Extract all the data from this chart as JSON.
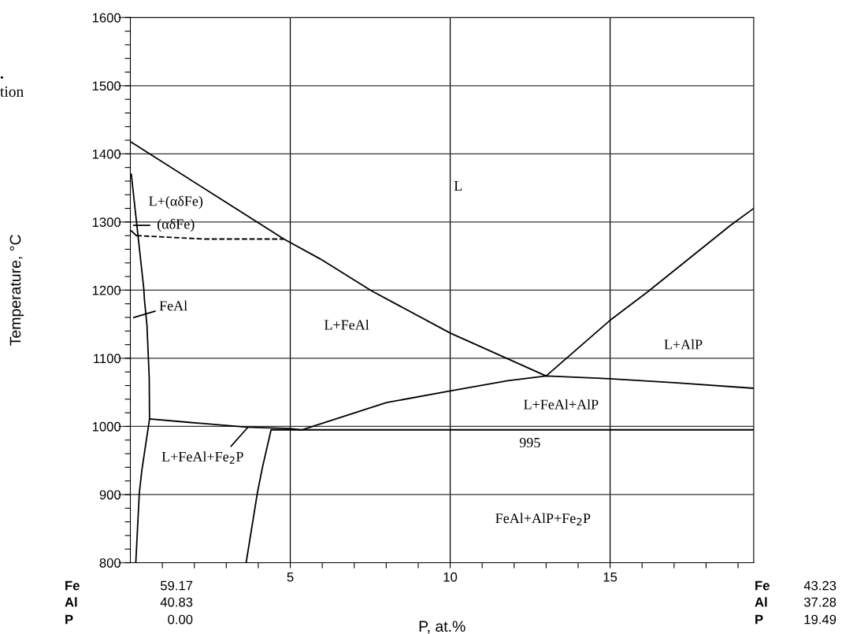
{
  "chart_data": {
    "type": "line",
    "xlabel": "P, at.%",
    "ylabel": "Temperature, °C",
    "xlim": [
      0,
      19.49
    ],
    "ylim": [
      800,
      1600
    ],
    "xticks": [
      {
        "value": 1,
        "label": null
      },
      {
        "value": 2,
        "label": null
      },
      {
        "value": 3,
        "label": null
      },
      {
        "value": 4,
        "label": null
      },
      5,
      {
        "value": 6,
        "label": null
      },
      {
        "value": 7,
        "label": null
      },
      {
        "value": 8,
        "label": null
      },
      {
        "value": 9,
        "label": null
      },
      10,
      {
        "value": 11,
        "label": null
      },
      {
        "value": 12,
        "label": null
      },
      {
        "value": 13,
        "label": null
      },
      {
        "value": 14,
        "label": null
      },
      15,
      {
        "value": 16,
        "label": null
      },
      {
        "value": 17,
        "label": null
      },
      {
        "value": 18,
        "label": null
      },
      {
        "value": 19,
        "label": null
      }
    ],
    "yticks": [
      800,
      {
        "value": 820,
        "label": null
      },
      {
        "value": 840,
        "label": null
      },
      {
        "value": 860,
        "label": null
      },
      {
        "value": 880,
        "label": null
      },
      900,
      {
        "value": 920,
        "label": null
      },
      {
        "value": 940,
        "label": null
      },
      {
        "value": 960,
        "label": null
      },
      {
        "value": 980,
        "label": null
      },
      1000,
      {
        "value": 1020,
        "label": null
      },
      {
        "value": 1040,
        "label": null
      },
      {
        "value": 1060,
        "label": null
      },
      {
        "value": 1080,
        "label": null
      },
      1100,
      {
        "value": 1120,
        "label": null
      },
      {
        "value": 1140,
        "label": null
      },
      {
        "value": 1160,
        "label": null
      },
      {
        "value": 1180,
        "label": null
      },
      1200,
      {
        "value": 1220,
        "label": null
      },
      {
        "value": 1240,
        "label": null
      },
      {
        "value": 1260,
        "label": null
      },
      {
        "value": 1280,
        "label": null
      },
      1300,
      {
        "value": 1320,
        "label": null
      },
      {
        "value": 1340,
        "label": null
      },
      {
        "value": 1360,
        "label": null
      },
      {
        "value": 1380,
        "label": null
      },
      1400,
      {
        "value": 1420,
        "label": null
      },
      {
        "value": 1440,
        "label": null
      },
      {
        "value": 1460,
        "label": null
      },
      {
        "value": 1480,
        "label": null
      },
      1500,
      {
        "value": 1520,
        "label": null
      },
      {
        "value": 1540,
        "label": null
      },
      {
        "value": 1560,
        "label": null
      },
      {
        "value": 1580,
        "label": null
      },
      1600
    ],
    "grid": true,
    "series": [
      {
        "color": "#000000",
        "x": [
          0,
          4.8,
          5.93,
          7.54,
          10.0,
          13.0,
          14.98,
          16.16,
          18.76,
          19.49
        ],
        "values": [
          1418,
          1275,
          1246,
          1199,
          1137,
          1074,
          1155,
          1197,
          1295,
          1320
        ]
      },
      {
        "color": "#000000",
        "x": [
          0.6,
          1.83,
          3.64,
          4.99,
          5.36,
          8.01,
          10.0,
          11.8,
          13.0,
          14.98,
          17.1,
          19.49
        ],
        "values": [
          1011,
          1006,
          999,
          997,
          995,
          1035,
          1052,
          1067,
          1074,
          1070,
          1064,
          1056
        ]
      },
      {
        "color": "#000000",
        "x": [
          3.62,
          3.97,
          4.13,
          4.4,
          19.49
        ],
        "values": [
          800,
          902,
          940,
          995,
          995
        ]
      },
      {
        "color": "#000000",
        "x": [
          0.03,
          0.42,
          0.44,
          0.52,
          0.59,
          0.6,
          0.36,
          0.28,
          0.17
        ],
        "values": [
          1370,
          1202,
          1186,
          1148,
          1071,
          1011,
          936,
          902,
          800
        ]
      },
      {
        "color": "#000000",
        "x": [
          0.03,
          0.19
        ],
        "values": [
          1287,
          1280
        ]
      },
      {
        "color": "#000000",
        "line_style": "dashed",
        "x": [
          0.19,
          2.33,
          4.8
        ],
        "values": [
          1280,
          1275,
          1275
        ]
      },
      {
        "color": "#000000",
        "x": [
          0.11,
          0.6
        ],
        "values": [
          1295,
          1295
        ]
      },
      {
        "color": "#000000",
        "x": [
          0.11,
          0.77
        ],
        "values": [
          1160,
          1169
        ]
      },
      {
        "color": "#000000",
        "x": [
          3.15,
          3.66
        ],
        "values": [
          971,
          998
        ]
      }
    ],
    "annotations": [
      "L",
      "L+(αδFe)",
      "(αδFe)",
      "FeAl",
      "L+FeAl",
      "L+AlP",
      "L+FeAl+AlP",
      "995",
      "L+FeAl+Fe$_{2}$P",
      "FeAl+AlP+Fe$_{2}$P",
      "Fe 59.17",
      "Al 40.83",
      "P 0.00",
      "Fe 43.23",
      "Al 37.28",
      "P 19.49",
      ".",
      "tion"
    ]
  }
}
